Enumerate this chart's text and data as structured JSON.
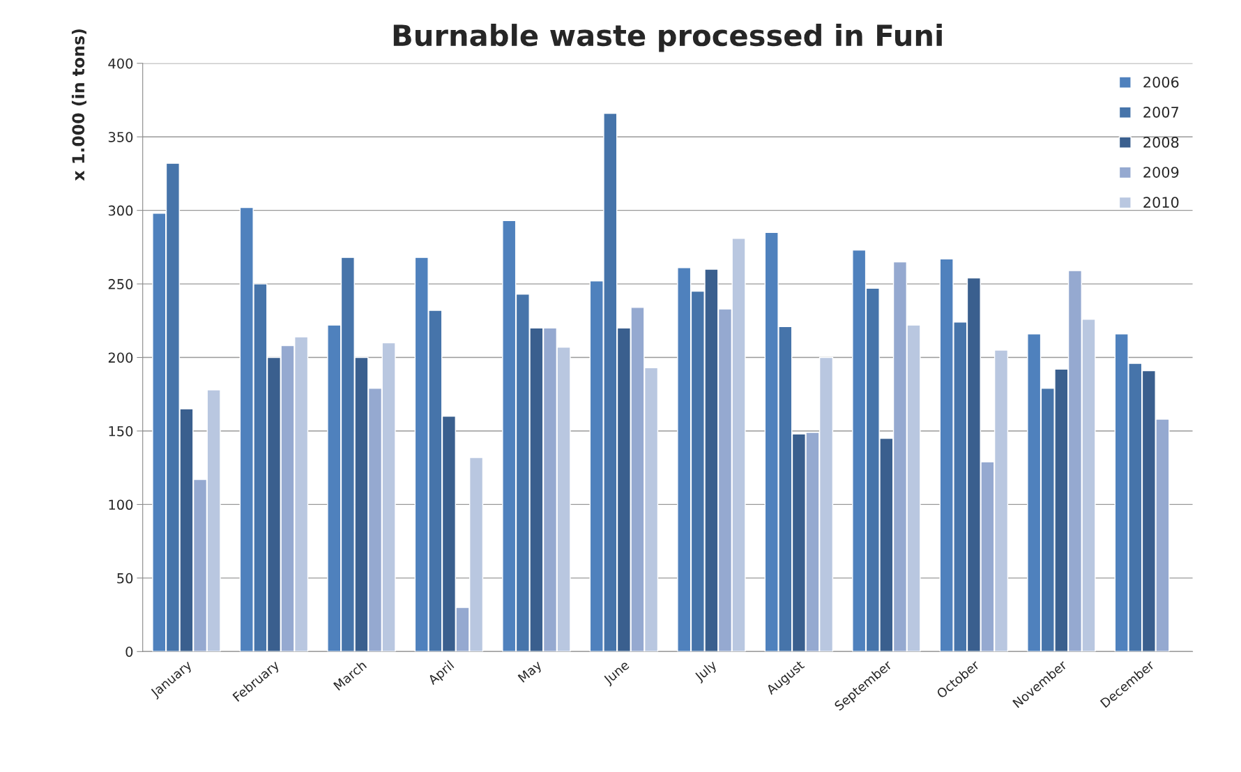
{
  "chart_data": {
    "type": "bar",
    "title": "Burnable waste processed in Funi",
    "ylabel": "x 1.000 (in tons)",
    "categories": [
      "January",
      "February",
      "March",
      "April",
      "May",
      "June",
      "July",
      "August",
      "September",
      "October",
      "November",
      "December"
    ],
    "series": [
      {
        "name": "2006",
        "color": "#4f81bd",
        "values": [
          298,
          302,
          222,
          268,
          293,
          252,
          261,
          285,
          273,
          267,
          216,
          216
        ]
      },
      {
        "name": "2007",
        "color": "#4674aa",
        "values": [
          332,
          250,
          268,
          232,
          243,
          366,
          245,
          221,
          247,
          224,
          179,
          196
        ]
      },
      {
        "name": "2008",
        "color": "#3a5f8e",
        "values": [
          165,
          200,
          200,
          160,
          220,
          220,
          260,
          148,
          145,
          254,
          192,
          191
        ]
      },
      {
        "name": "2009",
        "color": "#95a9d0",
        "values": [
          117,
          208,
          179,
          30,
          220,
          234,
          233,
          149,
          265,
          129,
          259,
          158
        ]
      },
      {
        "name": "2010",
        "color": "#b9c7e0",
        "values": [
          178,
          214,
          210,
          132,
          207,
          193,
          281,
          200,
          222,
          205,
          226,
          null
        ]
      }
    ],
    "ylim": [
      0,
      400
    ],
    "yticks": [
      0,
      50,
      100,
      150,
      200,
      250,
      300,
      350,
      400
    ],
    "grid": "y",
    "legend": "top right"
  }
}
